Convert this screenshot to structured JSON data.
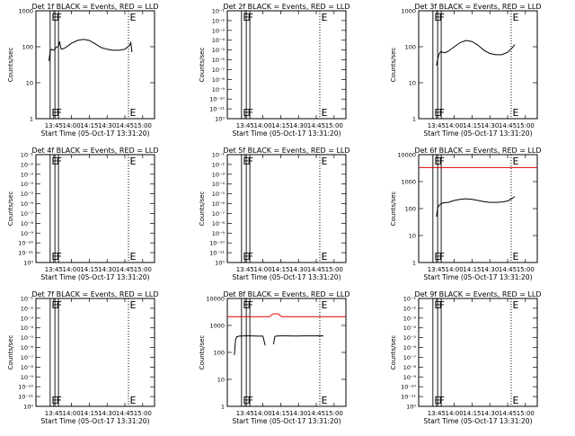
{
  "chart_data": [
    {
      "type": "line",
      "title": "Det 1f BLACK = Events, RED = LLD",
      "xlabel": "Start Time (05-Oct-17 13:31:20)",
      "ylabel": "Counts/sec",
      "x_tick_labels": [
        "13:45",
        "14:00",
        "14:15",
        "14:30",
        "14:45",
        "15:00"
      ],
      "y_tick_labels": [
        "1",
        "10",
        "100",
        "1000"
      ],
      "y_scale": "log",
      "ylim": [
        1,
        1000
      ],
      "markers": [
        {
          "label": "E",
          "style": "solid",
          "time": "13:42"
        },
        {
          "label": "F",
          "style": "solid",
          "time": "13:46"
        },
        {
          "label": "",
          "style": "solid",
          "time": "13:49"
        },
        {
          "label": "E",
          "style": "dotted",
          "time": "14:48"
        }
      ],
      "series": [
        {
          "color": "#000000",
          "x": [
            "13:41",
            "13:42",
            "13:43",
            "13:45",
            "13:47",
            "13:49",
            "13:50",
            "13:51",
            "13:52",
            "13:55",
            "14:00",
            "14:05",
            "14:10",
            "14:15",
            "14:20",
            "14:25",
            "14:30",
            "14:35",
            "14:40",
            "14:45",
            "14:49",
            "14:50",
            "14:51"
          ],
          "y": [
            40,
            75,
            85,
            80,
            95,
            105,
            140,
            90,
            85,
            95,
            125,
            150,
            160,
            150,
            120,
            95,
            85,
            80,
            80,
            85,
            110,
            130,
            70
          ]
        }
      ]
    },
    {
      "type": "line",
      "title": "Det 2f BLACK = Events, RED = LLD",
      "xlabel": "Start Time (05-Oct-17 13:31:20)",
      "ylabel": "Counts/sec",
      "x_tick_labels": [
        "13:45",
        "14:00",
        "14:15",
        "14:30",
        "14:45",
        "15:00"
      ],
      "y_tick_labels": [
        "10⁰",
        "10⁻¹¹",
        "10⁻¹⁰",
        "10⁻⁹",
        "10⁻⁸",
        "10⁻⁷",
        "10⁻⁶",
        "10⁻⁵",
        "10⁻⁴",
        "10⁻³",
        "10⁻²",
        "10⁻¹"
      ],
      "markers": [
        {
          "label": "E",
          "style": "solid",
          "time": "13:42"
        },
        {
          "label": "F",
          "style": "solid",
          "time": "13:46"
        },
        {
          "label": "",
          "style": "solid",
          "time": "13:49"
        },
        {
          "label": "E",
          "style": "dotted",
          "time": "14:48"
        }
      ],
      "series": []
    },
    {
      "type": "line",
      "title": "Det 3f BLACK = Events, RED = LLD",
      "xlabel": "Start Time (05-Oct-17 13:31:20)",
      "ylabel": "Counts/sec",
      "x_tick_labels": [
        "13:45",
        "14:00",
        "14:15",
        "14:30",
        "14:45",
        "15:00"
      ],
      "y_tick_labels": [
        "1",
        "10",
        "100",
        "1000"
      ],
      "y_scale": "log",
      "ylim": [
        1,
        1000
      ],
      "markers": [
        {
          "label": "E",
          "style": "solid",
          "time": "13:42"
        },
        {
          "label": "F",
          "style": "solid",
          "time": "13:46"
        },
        {
          "label": "",
          "style": "solid",
          "time": "13:49"
        },
        {
          "label": "E",
          "style": "dotted",
          "time": "14:48"
        }
      ],
      "series": [
        {
          "color": "#000000",
          "x": [
            "13:45",
            "13:46",
            "13:47",
            "13:48",
            "13:49",
            "13:50",
            "13:52",
            "13:55",
            "14:00",
            "14:05",
            "14:10",
            "14:15",
            "14:20",
            "14:25",
            "14:30",
            "14:35",
            "14:40",
            "14:45",
            "14:49",
            "14:51"
          ],
          "y": [
            30,
            45,
            60,
            70,
            75,
            70,
            68,
            75,
            100,
            130,
            150,
            140,
            110,
            80,
            65,
            60,
            60,
            70,
            95,
            115
          ]
        }
      ]
    },
    {
      "type": "line",
      "title": "Det 4f BLACK = Events, RED = LLD",
      "xlabel": "Start Time (05-Oct-17 13:31:20)",
      "ylabel": "Counts/sec",
      "x_tick_labels": [
        "13:45",
        "14:00",
        "14:15",
        "14:30",
        "14:45",
        "15:00"
      ],
      "y_tick_labels": [
        "10⁰",
        "10⁻¹¹",
        "10⁻¹⁰",
        "10⁻⁹",
        "10⁻⁸",
        "10⁻⁷",
        "10⁻⁶",
        "10⁻⁵",
        "10⁻⁴",
        "10⁻³",
        "10⁻²",
        "10⁻¹"
      ],
      "markers": [
        {
          "label": "E",
          "style": "solid",
          "time": "13:42"
        },
        {
          "label": "F",
          "style": "solid",
          "time": "13:46"
        },
        {
          "label": "",
          "style": "solid",
          "time": "13:49"
        },
        {
          "label": "E",
          "style": "dotted",
          "time": "14:48"
        }
      ],
      "series": []
    },
    {
      "type": "line",
      "title": "Det 5f BLACK = Events, RED = LLD",
      "xlabel": "Start Time (05-Oct-17 13:31:20)",
      "ylabel": "Counts/sec",
      "x_tick_labels": [
        "13:45",
        "14:00",
        "14:15",
        "14:30",
        "14:45",
        "15:00"
      ],
      "y_tick_labels": [
        "10⁰",
        "10⁻¹¹",
        "10⁻¹⁰",
        "10⁻⁹",
        "10⁻⁸",
        "10⁻⁷",
        "10⁻⁶",
        "10⁻⁵",
        "10⁻⁴",
        "10⁻³",
        "10⁻²",
        "10⁻¹"
      ],
      "markers": [
        {
          "label": "E",
          "style": "solid",
          "time": "13:42"
        },
        {
          "label": "F",
          "style": "solid",
          "time": "13:46"
        },
        {
          "label": "",
          "style": "solid",
          "time": "13:49"
        },
        {
          "label": "E",
          "style": "dotted",
          "time": "14:48"
        }
      ],
      "series": []
    },
    {
      "type": "line",
      "title": "Det 6f BLACK = Events, RED = LLD",
      "xlabel": "Start Time (05-Oct-17 13:31:20)",
      "ylabel": "Counts/sec",
      "x_tick_labels": [
        "13:45",
        "14:00",
        "14:15",
        "14:30",
        "14:45",
        "15:00"
      ],
      "y_tick_labels": [
        "1",
        "10",
        "100",
        "1000",
        "10000"
      ],
      "y_scale": "log",
      "ylim": [
        1,
        10000
      ],
      "markers": [
        {
          "label": "E",
          "style": "solid",
          "time": "13:42"
        },
        {
          "label": "F",
          "style": "solid",
          "time": "13:46"
        },
        {
          "label": "",
          "style": "solid",
          "time": "13:49"
        },
        {
          "label": "E",
          "style": "dotted",
          "time": "14:48"
        }
      ],
      "series": [
        {
          "color": "#000000",
          "x": [
            "13:45",
            "13:46",
            "13:47",
            "13:48",
            "13:49",
            "13:50",
            "13:52",
            "13:55",
            "14:00",
            "14:05",
            "14:10",
            "14:15",
            "14:20",
            "14:25",
            "14:30",
            "14:35",
            "14:40",
            "14:45",
            "14:49",
            "14:51"
          ],
          "y": [
            50,
            100,
            130,
            140,
            150,
            160,
            165,
            170,
            200,
            220,
            230,
            220,
            200,
            180,
            170,
            170,
            175,
            190,
            240,
            280
          ]
        },
        {
          "color": "#e00000",
          "x": [
            "13:30",
            "15:10"
          ],
          "y": [
            3300,
            3300
          ]
        }
      ]
    },
    {
      "type": "line",
      "title": "Det 7f BLACK = Events, RED = LLD",
      "xlabel": "Start Time (05-Oct-17 13:31:20)",
      "ylabel": "Counts/sec",
      "x_tick_labels": [
        "13:45",
        "14:00",
        "14:15",
        "14:30",
        "14:45",
        "15:00"
      ],
      "y_tick_labels": [
        "10⁰",
        "10⁻¹¹",
        "10⁻¹⁰",
        "10⁻⁹",
        "10⁻⁸",
        "10⁻⁷",
        "10⁻⁶",
        "10⁻⁵",
        "10⁻⁴",
        "10⁻³",
        "10⁻²",
        "10⁻¹"
      ],
      "markers": [
        {
          "label": "E",
          "style": "solid",
          "time": "13:42"
        },
        {
          "label": "F",
          "style": "solid",
          "time": "13:46"
        },
        {
          "label": "",
          "style": "solid",
          "time": "13:49"
        },
        {
          "label": "E",
          "style": "dotted",
          "time": "14:48"
        }
      ],
      "series": []
    },
    {
      "type": "line",
      "title": "Det 8f BLACK = Events, RED = LLD",
      "xlabel": "Start Time (05-Oct-17 13:31:20)",
      "ylabel": "Counts/sec",
      "x_tick_labels": [
        "13:45",
        "14:00",
        "14:15",
        "14:30",
        "14:45",
        "15:00"
      ],
      "y_tick_labels": [
        "1",
        "10",
        "100",
        "1000",
        "10000"
      ],
      "y_scale": "log",
      "ylim": [
        1,
        10000
      ],
      "markers": [
        {
          "label": "E",
          "style": "solid",
          "time": "13:42"
        },
        {
          "label": "F",
          "style": "solid",
          "time": "13:46"
        },
        {
          "label": "",
          "style": "solid",
          "time": "13:49"
        },
        {
          "label": "E",
          "style": "dotted",
          "time": "14:48"
        }
      ],
      "series": [
        {
          "color": "#000000",
          "x": [
            "13:36",
            "13:37",
            "13:38",
            "13:40",
            "13:45",
            "13:50",
            "13:55",
            "14:00",
            "14:02"
          ],
          "y": [
            80,
            300,
            380,
            400,
            410,
            410,
            400,
            400,
            180
          ]
        },
        {
          "color": "#000000",
          "x": [
            "14:09",
            "14:10",
            "14:11",
            "14:15",
            "14:20",
            "14:25",
            "14:30",
            "14:35",
            "14:40",
            "14:45",
            "14:50",
            "14:51"
          ],
          "y": [
            200,
            380,
            400,
            410,
            410,
            405,
            405,
            410,
            410,
            410,
            415,
            400
          ]
        },
        {
          "color": "#e00000",
          "x": [
            "13:30",
            "14:06",
            "14:07",
            "14:09",
            "14:13",
            "14:14",
            "14:16",
            "15:10"
          ],
          "y": [
            2100,
            2100,
            2400,
            2700,
            2700,
            2400,
            2100,
            2100
          ]
        }
      ]
    },
    {
      "type": "line",
      "title": "Det 9f BLACK = Events, RED = LLD",
      "xlabel": "Start Time (05-Oct-17 13:31:20)",
      "ylabel": "Counts/sec",
      "x_tick_labels": [
        "13:45",
        "14:00",
        "14:15",
        "14:30",
        "14:45",
        "15:00"
      ],
      "y_tick_labels": [
        "10⁰",
        "10⁻¹¹",
        "10⁻¹⁰",
        "10⁻⁹",
        "10⁻⁸",
        "10⁻⁷",
        "10⁻⁶",
        "10⁻⁵",
        "10⁻⁴",
        "10⁻³",
        "10⁻²",
        "10⁻¹"
      ],
      "markers": [
        {
          "label": "E",
          "style": "solid",
          "time": "13:42"
        },
        {
          "label": "F",
          "style": "solid",
          "time": "13:46"
        },
        {
          "label": "",
          "style": "solid",
          "time": "13:49"
        },
        {
          "label": "E",
          "style": "dotted",
          "time": "14:48"
        }
      ],
      "series": []
    }
  ]
}
